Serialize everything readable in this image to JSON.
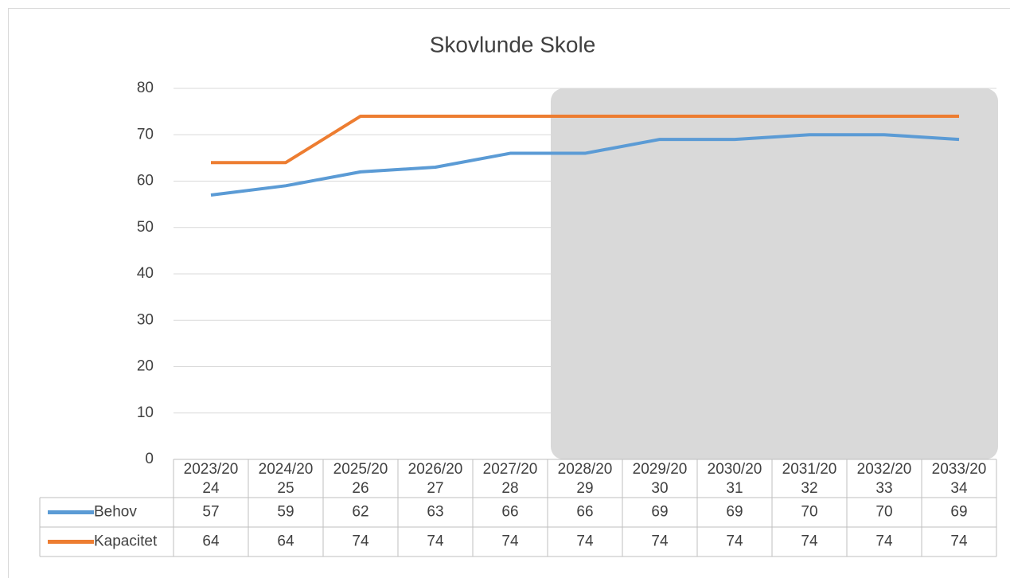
{
  "chart_data": {
    "type": "line",
    "title": "Skovlunde Skole",
    "categories": [
      "2023/2024",
      "2024/2025",
      "2025/2026",
      "2026/2027",
      "2027/2028",
      "2028/2029",
      "2029/2030",
      "2030/2031",
      "2031/2032",
      "2032/2033",
      "2033/2034"
    ],
    "series": [
      {
        "name": "Behov",
        "color": "#5b9bd5",
        "values": [
          57,
          59,
          62,
          63,
          66,
          66,
          69,
          69,
          70,
          70,
          69
        ]
      },
      {
        "name": "Kapacitet",
        "color": "#ed7d31",
        "values": [
          64,
          64,
          74,
          74,
          74,
          74,
          74,
          74,
          74,
          74,
          74
        ]
      }
    ],
    "ylim": [
      0,
      80
    ],
    "yticks": [
      0,
      10,
      20,
      30,
      40,
      50,
      60,
      70,
      80
    ],
    "grid": true
  }
}
